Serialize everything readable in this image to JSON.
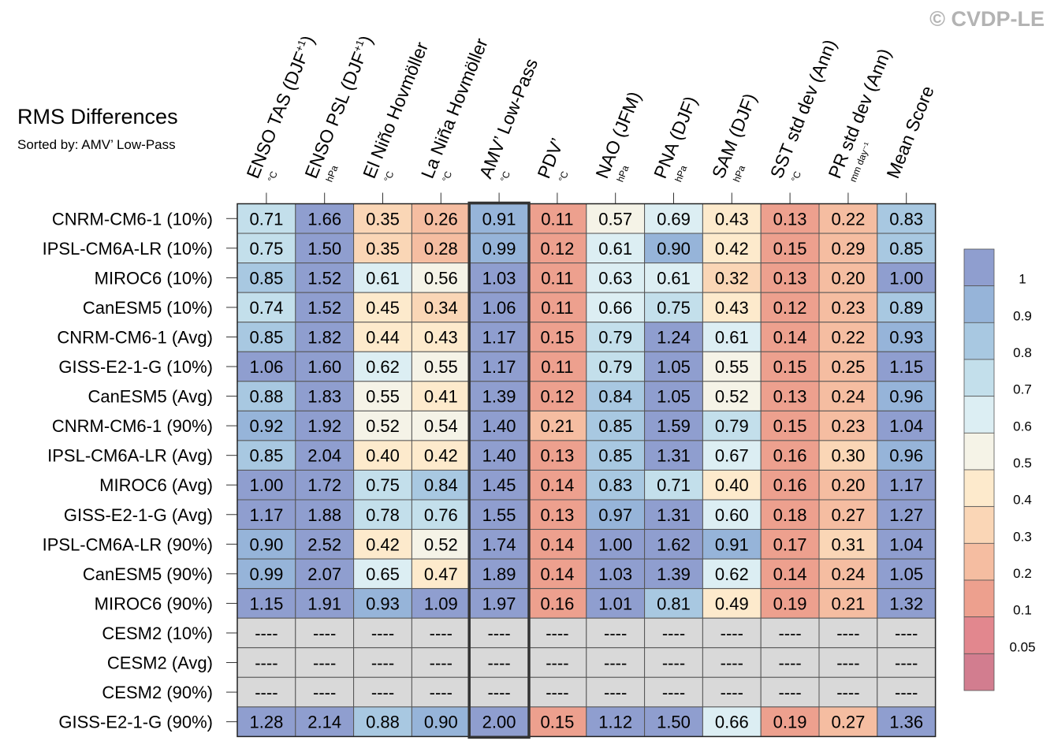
{
  "watermark": "© CVDP-LE",
  "title": "RMS Differences",
  "subtitle": "Sorted by: AMV’ Low-Pass",
  "chart_data": {
    "type": "heatmap",
    "title": "RMS Differences",
    "subtitle": "Sorted by: AMV’ Low-Pass",
    "highlight_column": "AMV’ Low-Pass",
    "columns": [
      {
        "label": "ENSO TAS (DJF",
        "sup": "+1",
        "tail": ")",
        "unit": "°C"
      },
      {
        "label": "ENSO PSL (DJF",
        "sup": "+1",
        "tail": ")",
        "unit": "hPa"
      },
      {
        "label": "El Niño Hovmöller",
        "sup": "",
        "tail": "",
        "unit": "°C"
      },
      {
        "label": "La Niña Hovmöller",
        "sup": "",
        "tail": "",
        "unit": "°C"
      },
      {
        "label": "AMV’ Low-Pass",
        "sup": "",
        "tail": "",
        "unit": "°C"
      },
      {
        "label": "PDV’",
        "sup": "",
        "tail": "",
        "unit": "°C"
      },
      {
        "label": "NAO (JFM)",
        "sup": "",
        "tail": "",
        "unit": "hPa"
      },
      {
        "label": "PNA (DJF)",
        "sup": "",
        "tail": "",
        "unit": "hPa"
      },
      {
        "label": "SAM (DJF)",
        "sup": "",
        "tail": "",
        "unit": "hPa"
      },
      {
        "label": "SST std dev (Ann)",
        "sup": "",
        "tail": "",
        "unit": "°C"
      },
      {
        "label": "PR std dev (Ann)",
        "sup": "",
        "tail": "",
        "unit": "mm day⁻¹"
      },
      {
        "label": "Mean Score",
        "sup": "",
        "tail": "",
        "unit": ""
      }
    ],
    "rows": [
      {
        "label": "CNRM-CM6-1 (10%)",
        "values": [
          0.71,
          1.66,
          0.35,
          0.26,
          0.91,
          0.11,
          0.57,
          0.69,
          0.43,
          0.13,
          0.22,
          0.83
        ]
      },
      {
        "label": "IPSL-CM6A-LR (10%)",
        "values": [
          0.75,
          1.5,
          0.35,
          0.28,
          0.99,
          0.12,
          0.61,
          0.9,
          0.42,
          0.15,
          0.29,
          0.85
        ]
      },
      {
        "label": "MIROC6 (10%)",
        "values": [
          0.85,
          1.52,
          0.61,
          0.56,
          1.03,
          0.11,
          0.63,
          0.61,
          0.32,
          0.13,
          0.2,
          1.0
        ]
      },
      {
        "label": "CanESM5 (10%)",
        "values": [
          0.74,
          1.52,
          0.45,
          0.34,
          1.06,
          0.11,
          0.66,
          0.75,
          0.43,
          0.12,
          0.23,
          0.89
        ]
      },
      {
        "label": "CNRM-CM6-1 (Avg)",
        "values": [
          0.85,
          1.82,
          0.44,
          0.43,
          1.17,
          0.15,
          0.79,
          1.24,
          0.61,
          0.14,
          0.22,
          0.93
        ]
      },
      {
        "label": "GISS-E2-1-G (10%)",
        "values": [
          1.06,
          1.6,
          0.62,
          0.55,
          1.17,
          0.11,
          0.79,
          1.05,
          0.55,
          0.15,
          0.25,
          1.15
        ]
      },
      {
        "label": "CanESM5 (Avg)",
        "values": [
          0.88,
          1.83,
          0.55,
          0.41,
          1.39,
          0.12,
          0.84,
          1.05,
          0.52,
          0.13,
          0.24,
          0.96
        ]
      },
      {
        "label": "CNRM-CM6-1 (90%)",
        "values": [
          0.92,
          1.92,
          0.52,
          0.54,
          1.4,
          0.21,
          0.85,
          1.59,
          0.79,
          0.15,
          0.23,
          1.04
        ]
      },
      {
        "label": "IPSL-CM6A-LR (Avg)",
        "values": [
          0.85,
          2.04,
          0.4,
          0.42,
          1.4,
          0.13,
          0.85,
          1.31,
          0.67,
          0.16,
          0.3,
          0.96
        ]
      },
      {
        "label": "MIROC6 (Avg)",
        "values": [
          1.0,
          1.72,
          0.75,
          0.84,
          1.45,
          0.14,
          0.83,
          0.71,
          0.4,
          0.16,
          0.2,
          1.17
        ]
      },
      {
        "label": "GISS-E2-1-G (Avg)",
        "values": [
          1.17,
          1.88,
          0.78,
          0.76,
          1.55,
          0.13,
          0.97,
          1.31,
          0.6,
          0.18,
          0.27,
          1.27
        ]
      },
      {
        "label": "IPSL-CM6A-LR (90%)",
        "values": [
          0.9,
          2.52,
          0.42,
          0.52,
          1.74,
          0.14,
          1.0,
          1.62,
          0.91,
          0.17,
          0.31,
          1.04
        ]
      },
      {
        "label": "CanESM5 (90%)",
        "values": [
          0.99,
          2.07,
          0.65,
          0.47,
          1.89,
          0.14,
          1.03,
          1.39,
          0.62,
          0.14,
          0.24,
          1.05
        ]
      },
      {
        "label": "MIROC6 (90%)",
        "values": [
          1.15,
          1.91,
          0.93,
          1.09,
          1.97,
          0.16,
          1.01,
          0.81,
          0.49,
          0.19,
          0.21,
          1.32
        ]
      },
      {
        "label": "CESM2 (10%)",
        "values": [
          null,
          null,
          null,
          null,
          null,
          null,
          null,
          null,
          null,
          null,
          null,
          null
        ]
      },
      {
        "label": "CESM2 (Avg)",
        "values": [
          null,
          null,
          null,
          null,
          null,
          null,
          null,
          null,
          null,
          null,
          null,
          null
        ]
      },
      {
        "label": "CESM2 (90%)",
        "values": [
          null,
          null,
          null,
          null,
          null,
          null,
          null,
          null,
          null,
          null,
          null,
          null
        ]
      },
      {
        "label": "GISS-E2-1-G (90%)",
        "values": [
          1.28,
          2.14,
          0.88,
          0.9,
          2.0,
          0.15,
          1.12,
          1.5,
          0.66,
          0.19,
          0.27,
          1.36
        ]
      }
    ],
    "missing_text": "----",
    "missing_color": "#d9d9d9",
    "colorbar": {
      "labels": [
        "1",
        "0.9",
        "0.8",
        "0.7",
        "0.6",
        "0.5",
        "0.4",
        "0.3",
        "0.2",
        "0.1",
        "0.05"
      ],
      "thresholds": [
        0.05,
        0.1,
        0.2,
        0.3,
        0.4,
        0.5,
        0.6,
        0.7,
        0.8,
        0.9,
        1
      ],
      "colors": [
        "#d27d8f",
        "#e2878e",
        "#eda08e",
        "#f5bda1",
        "#fad6b6",
        "#fdeacc",
        "#f5f3e7",
        "#dceef3",
        "#c3dfeb",
        "#a8c8e1",
        "#96b4d9",
        "#8f9ecf"
      ]
    }
  }
}
